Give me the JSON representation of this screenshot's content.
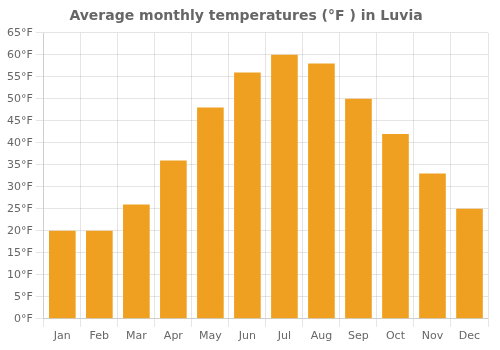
{
  "chart_data": {
    "type": "bar",
    "title": "Average monthly temperatures (°F ) in Luvia",
    "categories": [
      "Jan",
      "Feb",
      "Mar",
      "Apr",
      "May",
      "Jun",
      "Jul",
      "Aug",
      "Sep",
      "Oct",
      "Nov",
      "Dec"
    ],
    "values": [
      20,
      20,
      26,
      36,
      48,
      56,
      60,
      58,
      50,
      42,
      33,
      25
    ],
    "color": "#F0A020",
    "ylim": [
      0,
      65
    ],
    "yticks": [
      {
        "value": 0,
        "label": "0°F"
      },
      {
        "value": 5,
        "label": "5°F"
      },
      {
        "value": 10,
        "label": "10°F"
      },
      {
        "value": 15,
        "label": "15°F"
      },
      {
        "value": 20,
        "label": "20°F"
      },
      {
        "value": 25,
        "label": "25°F"
      },
      {
        "value": 30,
        "label": "30°F"
      },
      {
        "value": 35,
        "label": "35°F"
      },
      {
        "value": 40,
        "label": "40°F"
      },
      {
        "value": 45,
        "label": "45°F"
      },
      {
        "value": 50,
        "label": "50°F"
      },
      {
        "value": 55,
        "label": "55°F"
      },
      {
        "value": 60,
        "label": "60°F"
      },
      {
        "value": 65,
        "label": "65°F"
      }
    ],
    "grid": true
  }
}
